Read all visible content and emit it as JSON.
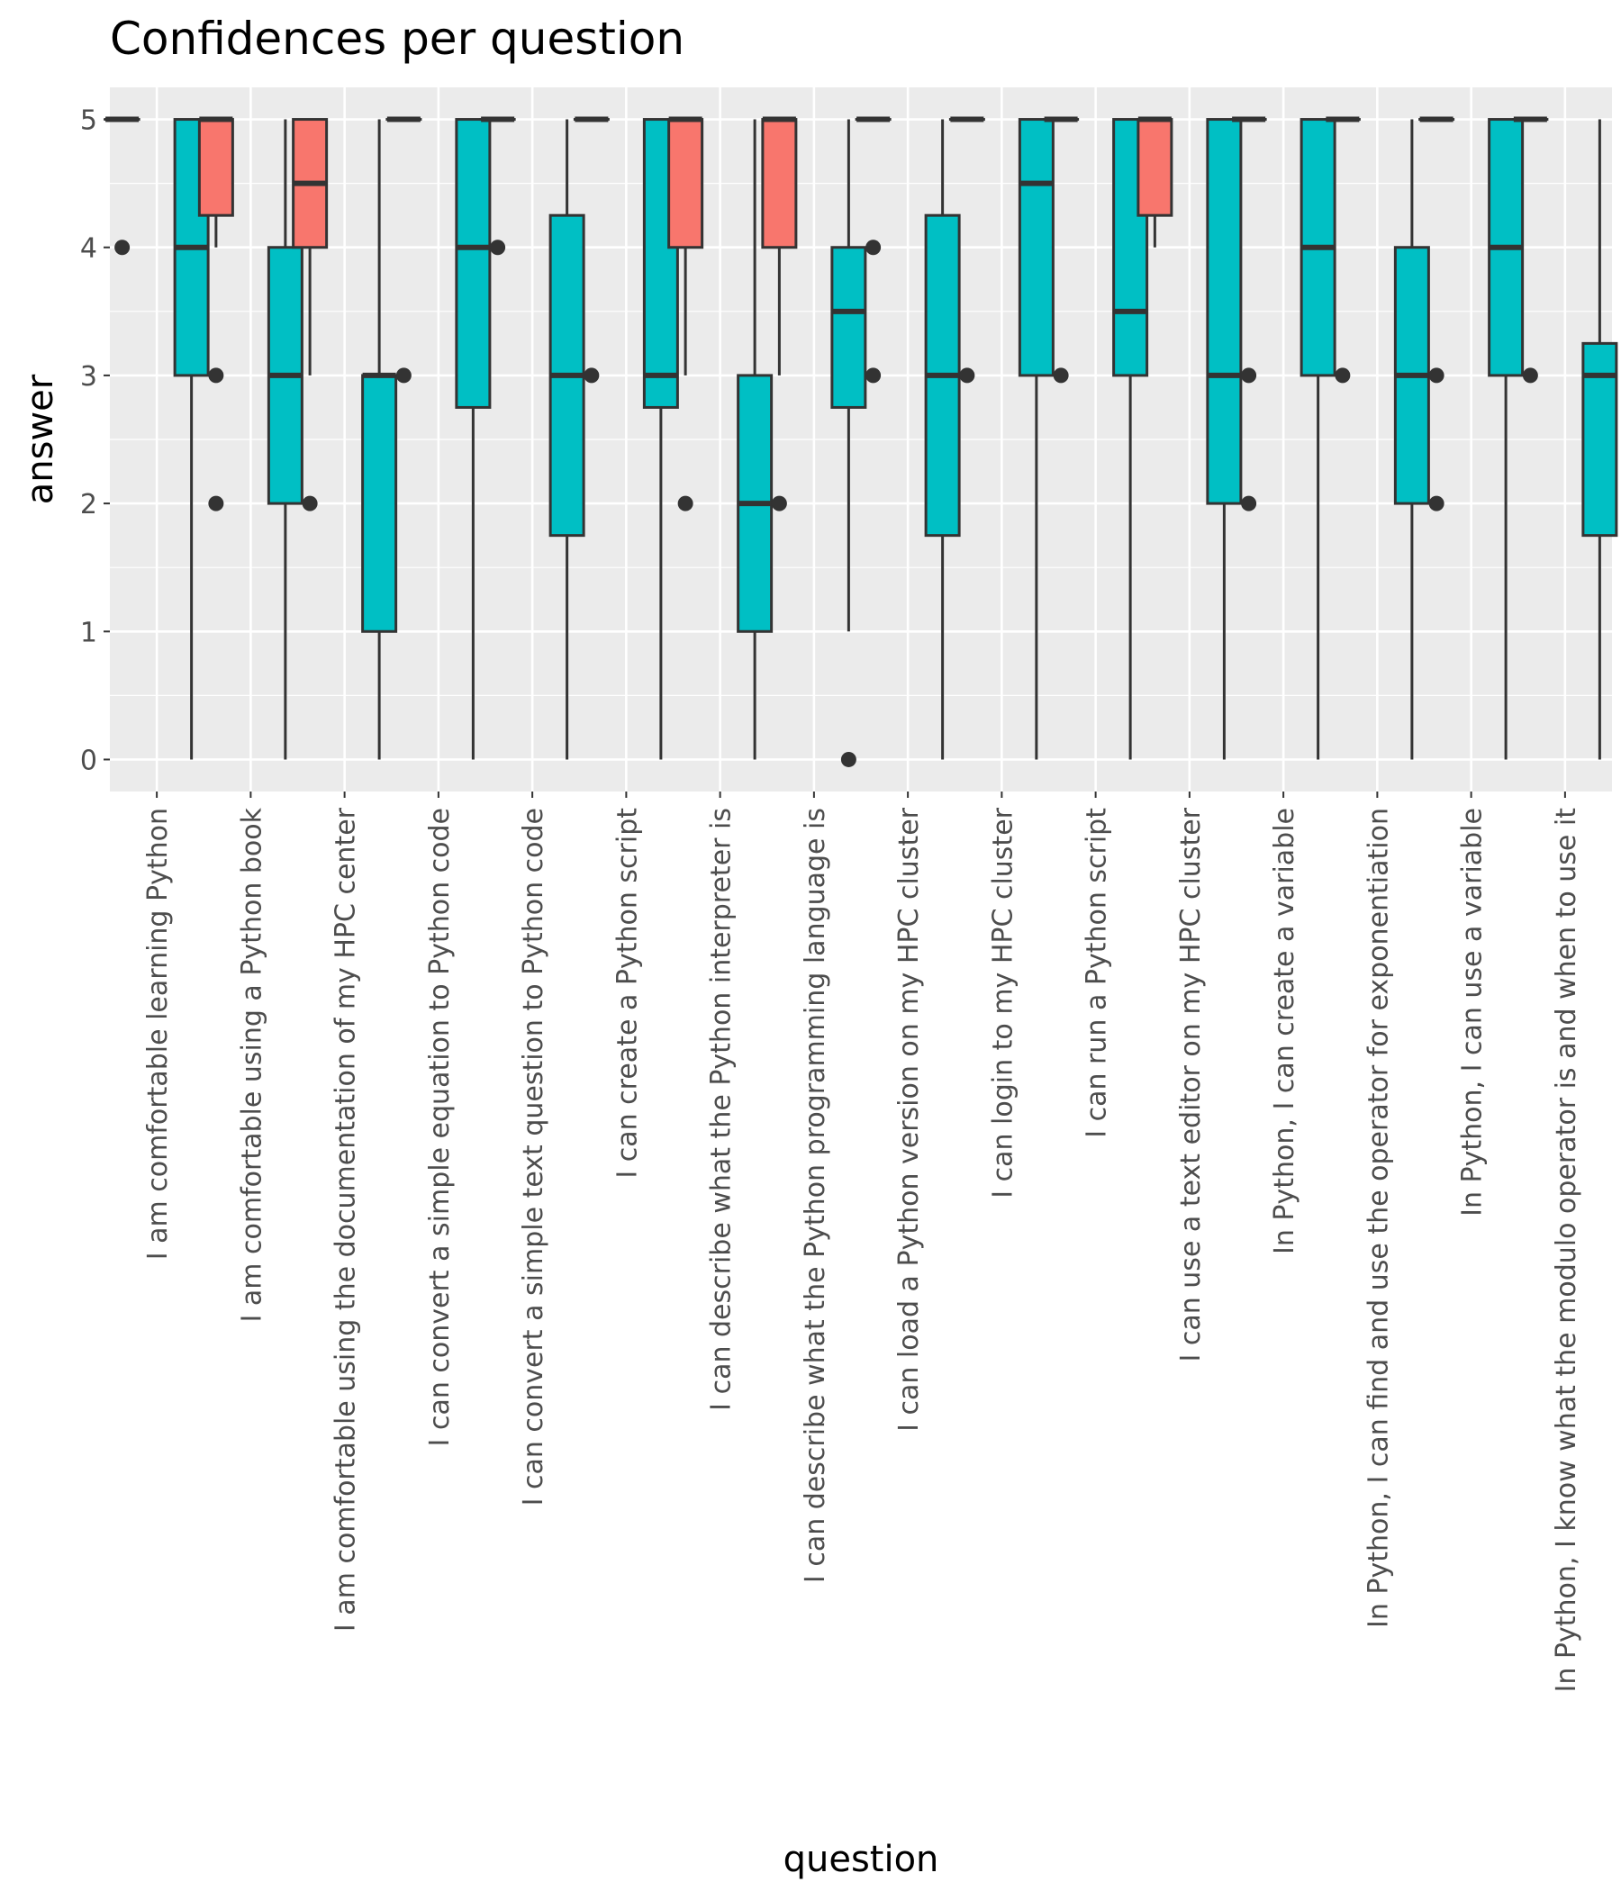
{
  "chart_data": {
    "type": "boxplot",
    "title": "Confidences per question",
    "xlabel": "question",
    "ylabel": "answer",
    "ylim": [
      -0.25,
      5.25
    ],
    "y_ticks": [
      0,
      1,
      2,
      3,
      4,
      5
    ],
    "grid": true,
    "legend": "none",
    "colors": {
      "series_a": "#F8766D",
      "series_b": "#00BFC4",
      "panel": "#EBEBEB",
      "grid": "#FFFFFF",
      "line": "#333333"
    },
    "series": [
      {
        "color": "#F8766D"
      },
      {
        "color": "#00BFC4"
      }
    ],
    "categories": [
      "I am comfortable learning Python",
      "I am comfortable using a Python book",
      "I am comfortable using the documentation of my HPC center",
      "I can convert a simple equation to Python code",
      "I can convert a simple text question to Python code",
      "I can create a Python script",
      "I can describe what the Python interpreter is",
      "I can describe what the Python programming language is",
      "I can load a Python version on my HPC cluster",
      "I can login to my HPC cluster",
      "I can run a Python script",
      "I can use a text editor on my HPC cluster",
      "In Python, I can create a variable",
      "In Python, I can find and use the operator for exponentiation",
      "In Python, I can use a variable",
      "In Python, I know what the modulo operator is and when to use it"
    ],
    "boxes": [
      [
        {
          "min": 5,
          "q1": 5,
          "median": 5,
          "q3": 5,
          "max": 5,
          "outliers": [
            4
          ]
        },
        {
          "min": 0,
          "q1": 3,
          "median": 4,
          "q3": 5,
          "max": 5,
          "outliers": []
        }
      ],
      [
        {
          "min": 4,
          "q1": 4.25,
          "median": 5,
          "q3": 5,
          "max": 5,
          "outliers": [
            3,
            2
          ]
        },
        {
          "min": 0,
          "q1": 2,
          "median": 3,
          "q3": 4,
          "max": 5,
          "outliers": []
        }
      ],
      [
        {
          "min": 3,
          "q1": 4,
          "median": 4.5,
          "q3": 5,
          "max": 5,
          "outliers": [
            2
          ]
        },
        {
          "min": 0,
          "q1": 1,
          "median": 3,
          "q3": 3,
          "max": 5,
          "outliers": []
        }
      ],
      [
        {
          "min": 5,
          "q1": 5,
          "median": 5,
          "q3": 5,
          "max": 5,
          "outliers": [
            3
          ]
        },
        {
          "min": 0,
          "q1": 2.75,
          "median": 4,
          "q3": 5,
          "max": 5,
          "outliers": []
        }
      ],
      [
        {
          "min": 5,
          "q1": 5,
          "median": 5,
          "q3": 5,
          "max": 5,
          "outliers": [
            4
          ]
        },
        {
          "min": 0,
          "q1": 1.75,
          "median": 3,
          "q3": 4.25,
          "max": 5,
          "outliers": []
        }
      ],
      [
        {
          "min": 5,
          "q1": 5,
          "median": 5,
          "q3": 5,
          "max": 5,
          "outliers": [
            3
          ]
        },
        {
          "min": 0,
          "q1": 2.75,
          "median": 3,
          "q3": 5,
          "max": 5,
          "outliers": []
        }
      ],
      [
        {
          "min": 3,
          "q1": 4,
          "median": 5,
          "q3": 5,
          "max": 5,
          "outliers": [
            2
          ]
        },
        {
          "min": 0,
          "q1": 1,
          "median": 2,
          "q3": 3,
          "max": 5,
          "outliers": []
        }
      ],
      [
        {
          "min": 3,
          "q1": 4,
          "median": 5,
          "q3": 5,
          "max": 5,
          "outliers": [
            2
          ]
        },
        {
          "min": 1,
          "q1": 2.75,
          "median": 3.5,
          "q3": 4,
          "max": 5,
          "outliers": [
            0
          ]
        }
      ],
      [
        {
          "min": 5,
          "q1": 5,
          "median": 5,
          "q3": 5,
          "max": 5,
          "outliers": [
            4,
            3
          ]
        },
        {
          "min": 0,
          "q1": 1.75,
          "median": 3,
          "q3": 4.25,
          "max": 5,
          "outliers": []
        }
      ],
      [
        {
          "min": 5,
          "q1": 5,
          "median": 5,
          "q3": 5,
          "max": 5,
          "outliers": [
            3
          ]
        },
        {
          "min": 0,
          "q1": 3,
          "median": 4.5,
          "q3": 5,
          "max": 5,
          "outliers": []
        }
      ],
      [
        {
          "min": 5,
          "q1": 5,
          "median": 5,
          "q3": 5,
          "max": 5,
          "outliers": [
            3
          ]
        },
        {
          "min": 0,
          "q1": 3,
          "median": 3.5,
          "q3": 5,
          "max": 5,
          "outliers": []
        }
      ],
      [
        {
          "min": 4,
          "q1": 4.25,
          "median": 5,
          "q3": 5,
          "max": 5,
          "outliers": []
        },
        {
          "min": 0,
          "q1": 2,
          "median": 3,
          "q3": 5,
          "max": 5,
          "outliers": []
        }
      ],
      [
        {
          "min": 5,
          "q1": 5,
          "median": 5,
          "q3": 5,
          "max": 5,
          "outliers": [
            3,
            2
          ]
        },
        {
          "min": 0,
          "q1": 3,
          "median": 4,
          "q3": 5,
          "max": 5,
          "outliers": []
        }
      ],
      [
        {
          "min": 5,
          "q1": 5,
          "median": 5,
          "q3": 5,
          "max": 5,
          "outliers": [
            3
          ]
        },
        {
          "min": 0,
          "q1": 2,
          "median": 3,
          "q3": 4,
          "max": 5,
          "outliers": []
        }
      ],
      [
        {
          "min": 5,
          "q1": 5,
          "median": 5,
          "q3": 5,
          "max": 5,
          "outliers": [
            3,
            2
          ]
        },
        {
          "min": 0,
          "q1": 3,
          "median": 4,
          "q3": 5,
          "max": 5,
          "outliers": []
        }
      ],
      [
        {
          "min": 5,
          "q1": 5,
          "median": 5,
          "q3": 5,
          "max": 5,
          "outliers": [
            3
          ]
        },
        {
          "min": 0,
          "q1": 1.75,
          "median": 3,
          "q3": 3.25,
          "max": 5,
          "outliers": []
        }
      ]
    ]
  }
}
